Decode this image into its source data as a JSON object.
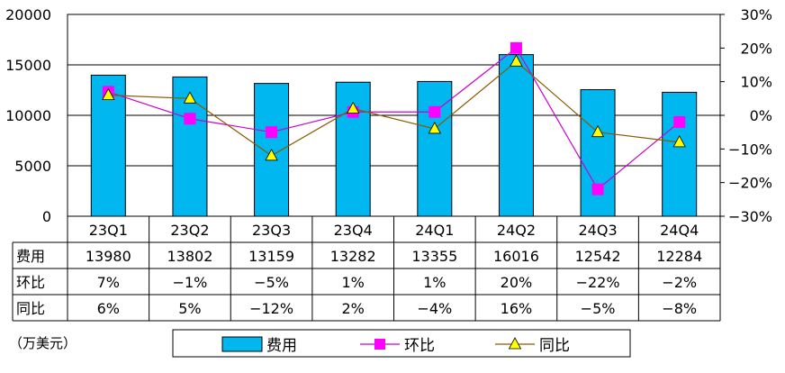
{
  "chart_data": {
    "type": "bar",
    "categories": [
      "23Q1",
      "23Q2",
      "23Q3",
      "23Q4",
      "24Q1",
      "24Q2",
      "24Q3",
      "24Q4"
    ],
    "series": [
      {
        "name": "费用",
        "type": "bar",
        "axis": "left",
        "values": [
          13980,
          13802,
          13159,
          13282,
          13355,
          16016,
          12542,
          12284
        ],
        "color": "#00b7ef"
      },
      {
        "name": "环比",
        "type": "line",
        "axis": "right",
        "marker": "square",
        "values": [
          7,
          -1,
          -5,
          1,
          1,
          20,
          -22,
          -2
        ],
        "color": "#cc00cc",
        "marker_color": "#ff00ff"
      },
      {
        "name": "同比",
        "type": "line",
        "axis": "right",
        "marker": "triangle",
        "values": [
          6,
          5,
          -12,
          2,
          -4,
          16,
          -5,
          -8
        ],
        "color": "#8b5a00",
        "marker_color": "#ffff00"
      }
    ],
    "left_axis": {
      "ylim": [
        0,
        20000
      ],
      "ticks": [
        "0",
        "5000",
        "10000",
        "15000",
        "20000"
      ]
    },
    "right_axis": {
      "ylim": [
        -30,
        30
      ],
      "ticks": [
        "-30%",
        "-20%",
        "-10%",
        "0%",
        "10%",
        "20%",
        "30%"
      ]
    },
    "table": {
      "rows": [
        {
          "label": "费用",
          "cells": [
            "13980",
            "13802",
            "13159",
            "13282",
            "13355",
            "16016",
            "12542",
            "12284"
          ]
        },
        {
          "label": "环比",
          "cells": [
            "7%",
            "-1%",
            "-5%",
            "1%",
            "1%",
            "20%",
            "-22%",
            "-2%"
          ]
        },
        {
          "label": "同比",
          "cells": [
            "6%",
            "5%",
            "-12%",
            "2%",
            "-4%",
            "16%",
            "-5%",
            "-8%"
          ]
        }
      ]
    },
    "unit_label": "（万美元）",
    "grid": true,
    "legend_position": "bottom"
  }
}
